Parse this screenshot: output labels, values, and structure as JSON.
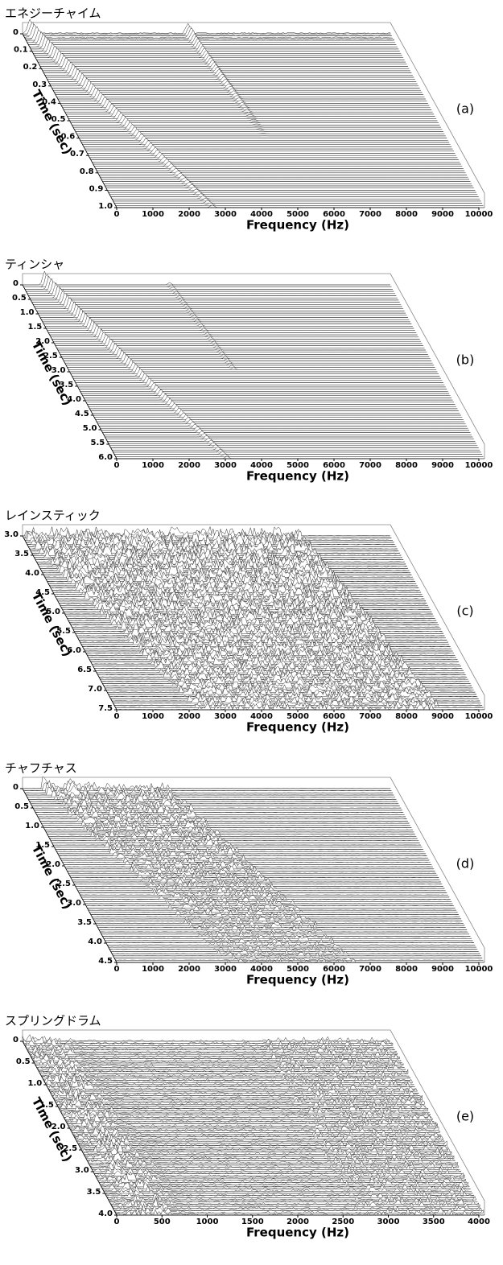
{
  "chart_data": [
    {
      "type": "waterfall",
      "title": "エネジーチャイム",
      "panel_label": "(a)",
      "xlabel": "Frequency (Hz)",
      "ylabel": "Time (sec)",
      "xlim": [
        0,
        10000
      ],
      "xticks": [
        0,
        1000,
        2000,
        3000,
        4000,
        5000,
        6000,
        7000,
        8000,
        9000,
        10000
      ],
      "ylim": [
        0,
        1
      ],
      "yticks": [
        0,
        0.1,
        0.2,
        0.3,
        0.4,
        0.5,
        0.6,
        0.7,
        0.8,
        0.9,
        {
          "value": 1,
          "label": "1.0"
        }
      ]
    },
    {
      "type": "waterfall",
      "title": "ティンシャ",
      "panel_label": "(b)",
      "xlabel": "Frequency (Hz)",
      "ylabel": "Time (sec)",
      "xlim": [
        0,
        10000
      ],
      "xticks": [
        0,
        1000,
        2000,
        3000,
        4000,
        5000,
        6000,
        7000,
        8000,
        9000,
        10000
      ],
      "ylim": [
        0,
        6
      ],
      "yticks": [
        0,
        0.5,
        {
          "value": 1,
          "label": "1.0"
        },
        1.5,
        {
          "value": 2,
          "label": "2.0"
        },
        2.5,
        {
          "value": 3,
          "label": "3.0"
        },
        3.5,
        {
          "value": 4,
          "label": "4.0"
        },
        4.5,
        {
          "value": 5,
          "label": "5.0"
        },
        5.5,
        {
          "value": 6,
          "label": "6.0"
        }
      ]
    },
    {
      "type": "waterfall",
      "title": "レインスティック",
      "panel_label": "(c)",
      "xlabel": "Frequency (Hz)",
      "ylabel": "Time (sec)",
      "xlim": [
        0,
        10000
      ],
      "xticks": [
        0,
        1000,
        2000,
        3000,
        4000,
        5000,
        6000,
        7000,
        8000,
        9000,
        10000
      ],
      "ylim": [
        3,
        7.5
      ],
      "yticks": [
        {
          "value": 3,
          "label": "3.0"
        },
        3.5,
        {
          "value": 4,
          "label": "4.0"
        },
        4.5,
        {
          "value": 5,
          "label": "5.0"
        },
        5.5,
        {
          "value": 6,
          "label": "6.0"
        },
        6.5,
        {
          "value": 7,
          "label": "7.0"
        },
        7.5
      ]
    },
    {
      "type": "waterfall",
      "title": "チャフチャス",
      "panel_label": "(d)",
      "xlabel": "Frequency (Hz)",
      "ylabel": "Time (sec)",
      "xlim": [
        0,
        10000
      ],
      "xticks": [
        0,
        1000,
        2000,
        3000,
        4000,
        5000,
        6000,
        7000,
        8000,
        9000,
        10000
      ],
      "ylim": [
        0,
        4.5
      ],
      "yticks": [
        0,
        0.5,
        {
          "value": 1,
          "label": "1.0"
        },
        1.5,
        {
          "value": 2,
          "label": "2.0"
        },
        2.5,
        {
          "value": 3,
          "label": "3.0"
        },
        3.5,
        {
          "value": 4,
          "label": "4.0"
        },
        4.5
      ]
    },
    {
      "type": "waterfall",
      "title": "スプリングドラム",
      "panel_label": "(e)",
      "xlabel": "Frequency (Hz)",
      "ylabel": "Time (sec)",
      "xlim": [
        0,
        4000
      ],
      "xticks": [
        0,
        500,
        1000,
        1500,
        2000,
        2500,
        3000,
        3500,
        4000
      ],
      "ylim": [
        0,
        4
      ],
      "yticks": [
        0,
        0.5,
        {
          "value": 1,
          "label": "1.0"
        },
        1.5,
        {
          "value": 2,
          "label": "2.0"
        },
        2.5,
        {
          "value": 3,
          "label": "3.0"
        },
        3.5,
        {
          "value": 4,
          "label": "4.0"
        }
      ]
    }
  ]
}
